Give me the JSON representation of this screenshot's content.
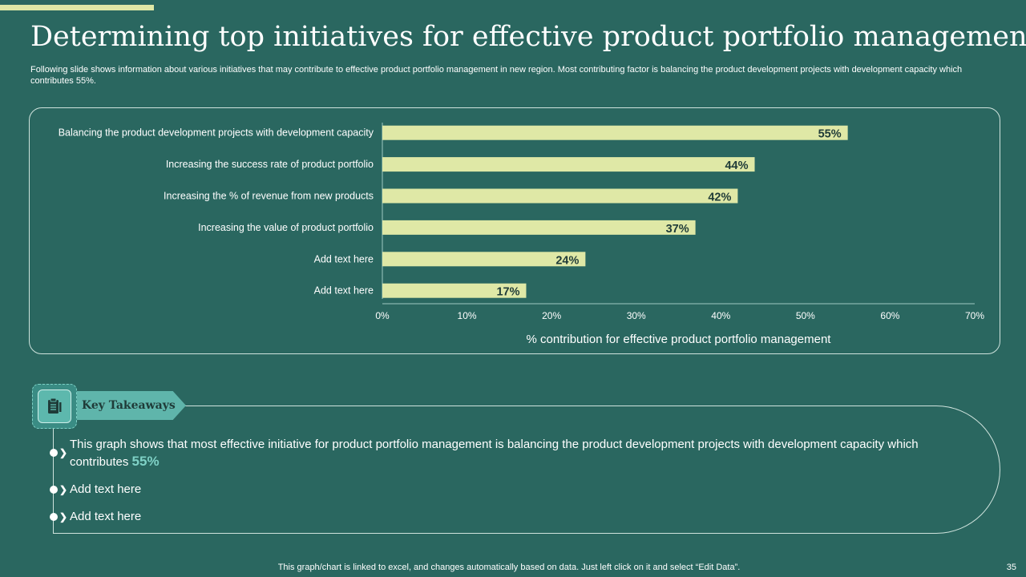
{
  "slide": {
    "title": "Determining top initiatives for effective product portfolio management",
    "subtitle": "Following slide shows information about various initiatives that may contribute to effective product portfolio management in new region. Most contributing factor is balancing the product development projects with development capacity which contributes 55%.",
    "footer_note": "This graph/chart is linked to excel, and changes automatically based on data. Just left click on it and select “Edit Data”.",
    "page_number": "35"
  },
  "chart_data": {
    "type": "bar",
    "orientation": "horizontal",
    "categories": [
      "Balancing the product development projects with development capacity",
      "Increasing the success rate of product portfolio",
      "Increasing the % of revenue from new products",
      "Increasing the value of product portfolio",
      "Add text here",
      "Add text here"
    ],
    "values": [
      55,
      44,
      42,
      37,
      24,
      17
    ],
    "data_labels": [
      "55%",
      "44%",
      "42%",
      "37%",
      "24%",
      "17%"
    ],
    "xlabel": "% contribution for effective product portfolio management",
    "ylabel": "",
    "xlim": [
      0,
      70
    ],
    "ticks": [
      0,
      10,
      20,
      30,
      40,
      50,
      60,
      70
    ],
    "tick_labels": [
      "0%",
      "10%",
      "20%",
      "30%",
      "40%",
      "50%",
      "60%",
      "70%"
    ],
    "bar_color": "#dfe8a6",
    "grid": false
  },
  "takeaways": {
    "heading": "Key Takeaways",
    "icon": "clipboard-icon",
    "points": [
      {
        "text": "This graph shows that most effective initiative for product portfolio management is balancing the product development projects with development capacity which contributes",
        "highlight": "55%"
      },
      {
        "text": "Add text here"
      },
      {
        "text": "Add text here"
      }
    ]
  },
  "colors": {
    "background": "#2a6760",
    "accent": "#dfe8a6",
    "highlight": "#7fd1c6"
  }
}
